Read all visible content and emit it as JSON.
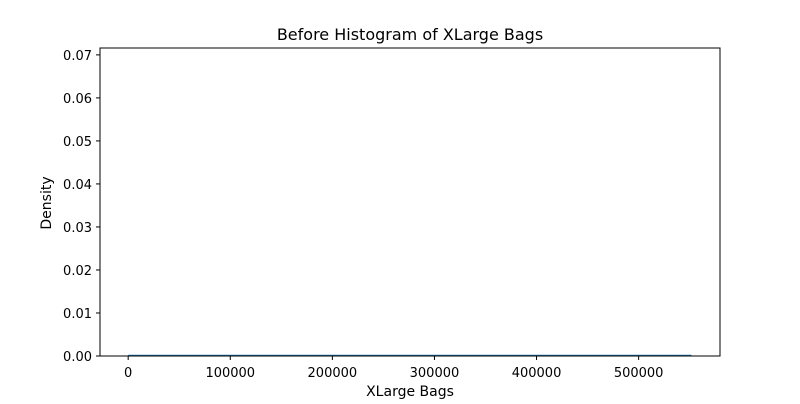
{
  "chart_data": {
    "type": "histogram",
    "title": "Before Histogram of XLarge Bags",
    "xlabel": "XLarge Bags",
    "ylabel": "Density",
    "xlim": [
      -27600,
      579700
    ],
    "ylim": [
      0,
      0.0716
    ],
    "xticks": [
      0,
      100000,
      200000,
      300000,
      400000,
      500000
    ],
    "xtick_labels": [
      "0",
      "100000",
      "200000",
      "300000",
      "400000",
      "500000"
    ],
    "yticks": [
      0,
      0.01,
      0.02,
      0.03,
      0.04,
      0.05,
      0.06,
      0.07
    ],
    "ytick_labels": [
      "0.00",
      "0.01",
      "0.02",
      "0.03",
      "0.04",
      "0.05",
      "0.06",
      "0.07"
    ],
    "histogram": {
      "range": [
        0,
        551700
      ],
      "density": 0,
      "color": "#1f77b4"
    },
    "kde": {
      "x": [
        0,
        551700
      ],
      "y": [
        0,
        0
      ],
      "color": "#1f77b4"
    },
    "grid": false,
    "legend": "none"
  }
}
